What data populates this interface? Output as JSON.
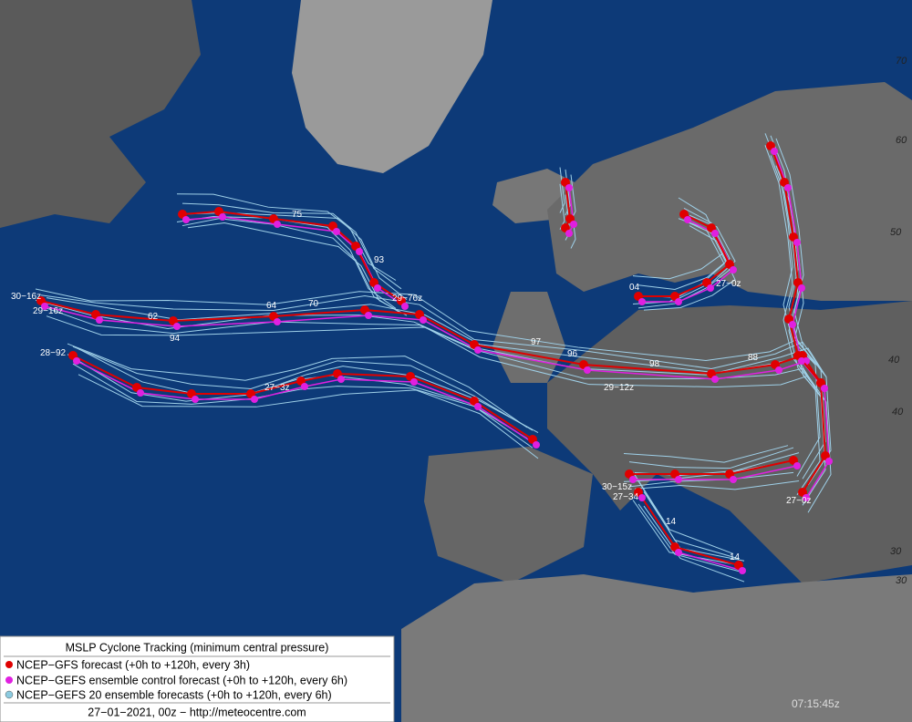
{
  "legend": {
    "title": "MSLP Cyclone Tracking (minimum central pressure)",
    "items": [
      "NCEP−GFS forecast (+0h to +120h, every 3h)",
      "NCEP−GEFS ensemble control forecast (+0h to +120h, every 6h)",
      "NCEP−GEFS 20 ensemble forecasts (+0h to +120h, every 6h)"
    ],
    "footer": "27−01−2021, 00z − http://meteocentre.com"
  },
  "timestamp": "07:15:45z",
  "latitude_labels": [
    "70",
    "60",
    "50",
    "40",
    "40",
    "30",
    "30"
  ],
  "track_labels": [
    "30−16z",
    "29−16z",
    "28−92",
    "27−3z",
    "29−12z",
    "27−0z",
    "27−0z",
    "30−15z",
    "27−34",
    "29−76z",
    "04",
    "14",
    "14",
    "75",
    "70",
    "64",
    "62",
    "94",
    "93",
    "88",
    "96",
    "97",
    "98"
  ]
}
